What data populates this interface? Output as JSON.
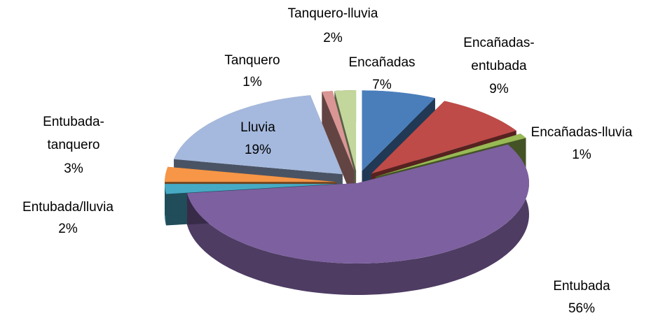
{
  "chart_data": {
    "type": "pie3d",
    "categories": [
      "Encañadas",
      "Encañadas-entubada",
      "Encañadas-lluvia",
      "Entubada",
      "Entubada/lluvia",
      "Entubada-tanquero",
      "Lluvia",
      "Tanquero",
      "Tanquero-lluvia"
    ],
    "values": [
      7,
      9,
      1,
      56,
      2,
      3,
      19,
      1,
      2
    ],
    "value_labels": [
      "7%",
      "9%",
      "1%",
      "56%",
      "2%",
      "3%",
      "19%",
      "1%",
      "2%"
    ],
    "colors": [
      "#4a7ebb",
      "#be4b48",
      "#98b954",
      "#7d60a0",
      "#46aac5",
      "#f79646",
      "#a5b9de",
      "#d99694",
      "#c3d69b"
    ]
  }
}
